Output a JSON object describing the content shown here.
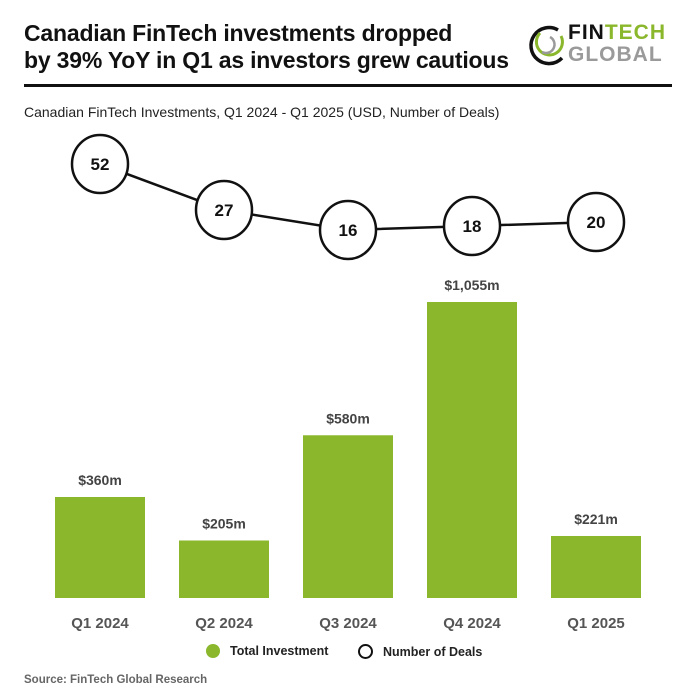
{
  "header": {
    "title_line1": "Canadian FinTech investments dropped",
    "title_line2": "by 39% YoY in Q1 as investors grew cautious",
    "subtitle": "Canadian FinTech Investments, Q1 2024 - Q1 2025 (USD, Number of Deals)"
  },
  "logo": {
    "fin": "FIN",
    "tech": "TECH",
    "global": "GLOBAL"
  },
  "legend": {
    "investment": "Total Investment",
    "deals": "Number of Deals"
  },
  "source": "Source: FinTech Global Research",
  "colors": {
    "bar": "#8ab72b",
    "line": "#111111",
    "logo_green": "#8ab72b",
    "logo_grey": "#9a9a9a"
  },
  "chart_data": {
    "type": "bar",
    "title": "Canadian FinTech investments dropped by 39% YoY in Q1 as investors grew cautious",
    "subtitle": "Canadian FinTech Investments, Q1 2024 - Q1 2025 (USD, Number of Deals)",
    "categories": [
      "Q1 2024",
      "Q2 2024",
      "Q3 2024",
      "Q4 2024",
      "Q1 2025"
    ],
    "series": [
      {
        "name": "Total Investment",
        "type": "bar",
        "unit": "USD millions",
        "values": [
          360,
          205,
          580,
          1055,
          221
        ],
        "labels": [
          "$360m",
          "$205m",
          "$580m",
          "$1,055m",
          "$221m"
        ]
      },
      {
        "name": "Number of Deals",
        "type": "line",
        "values": [
          52,
          27,
          16,
          18,
          20
        ],
        "labels": [
          "52",
          "27",
          "16",
          "18",
          "20"
        ]
      }
    ],
    "xlabel": "",
    "ylabel": "",
    "grid": false,
    "legend_position": "bottom",
    "source": "Source: FinTech Global Research"
  }
}
